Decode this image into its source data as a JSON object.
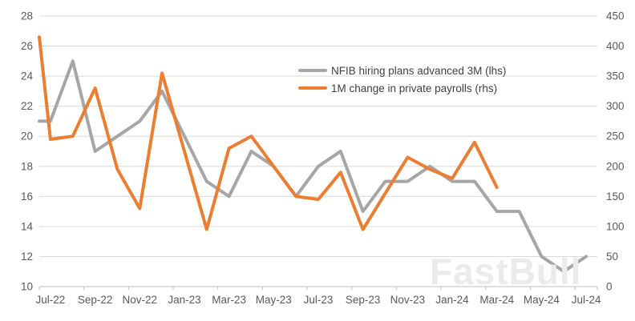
{
  "watermark": "FastBull",
  "legend": [
    {
      "label": "NFIB hiring plans advanced 3M (lhs)",
      "color": "#a6a6a6"
    },
    {
      "label": "1M change in private payrolls (rhs)",
      "color": "#ed7d31"
    }
  ],
  "chart_data": {
    "type": "line",
    "title": "",
    "xlabel": "",
    "ylabel_left": "",
    "ylabel_right": "",
    "grid": true,
    "legend_position": "top-center",
    "x": [
      "Jun-22",
      "Jul-22",
      "Aug-22",
      "Sep-22",
      "Oct-22",
      "Nov-22",
      "Dec-22",
      "Jan-23",
      "Feb-23",
      "Mar-23",
      "Apr-23",
      "May-23",
      "Jun-23",
      "Jul-23",
      "Aug-23",
      "Sep-23",
      "Oct-23",
      "Nov-23",
      "Dec-23",
      "Jan-24",
      "Feb-24",
      "Mar-24",
      "Apr-24",
      "May-24",
      "Jun-24",
      "Jul-24"
    ],
    "x_tick_labels": [
      "Jul-22",
      "Sep-22",
      "Nov-22",
      "Jan-23",
      "Mar-23",
      "May-23",
      "Jul-23",
      "Sep-23",
      "Nov-23",
      "Jan-24",
      "Mar-24",
      "May-24",
      "Jul-24"
    ],
    "left_axis": {
      "min": 10,
      "max": 28,
      "step": 2,
      "ticks": [
        10,
        12,
        14,
        16,
        18,
        20,
        22,
        24,
        26,
        28
      ]
    },
    "right_axis": {
      "min": 0,
      "max": 450,
      "step": 50,
      "ticks": [
        0,
        50,
        100,
        150,
        200,
        250,
        300,
        350,
        400,
        450
      ]
    },
    "series": [
      {
        "name": "NFIB hiring plans advanced 3M (lhs)",
        "axis": "left",
        "color": "#a6a6a6",
        "stroke_width": 4,
        "values": [
          21,
          21,
          25,
          19,
          20,
          21,
          23,
          20,
          17,
          16,
          19,
          18,
          16,
          18,
          19,
          15,
          17,
          17,
          18,
          17,
          17,
          15,
          15,
          12,
          11,
          12
        ]
      },
      {
        "name": "1M change in private payrolls (rhs)",
        "axis": "right",
        "color": "#ed7d31",
        "stroke_width": 4,
        "values": [
          415,
          245,
          250,
          330,
          195,
          130,
          355,
          225,
          95,
          230,
          250,
          200,
          150,
          145,
          190,
          95,
          155,
          215,
          195,
          180,
          240,
          165
        ]
      }
    ]
  }
}
